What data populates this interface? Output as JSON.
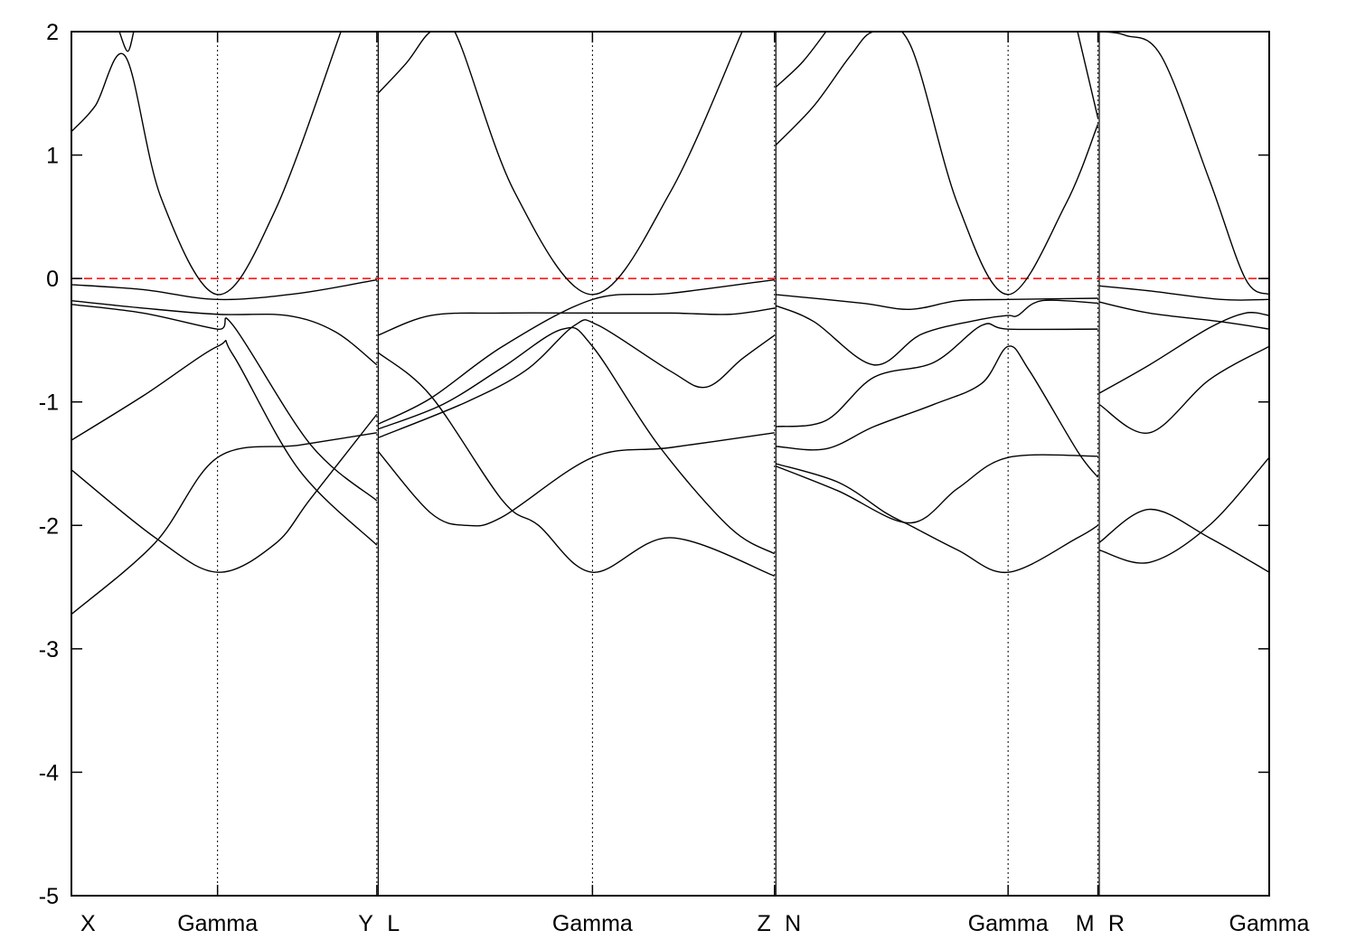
{
  "chart_data": {
    "type": "line",
    "title": "",
    "xlabel": "",
    "ylabel": "",
    "ylim": [
      -5,
      2
    ],
    "yticks": [
      2,
      1,
      0,
      -1,
      -2,
      -3,
      -4,
      -5
    ],
    "x_range": [
      0,
      1
    ],
    "segment_boundaries": [
      0.122,
      0.255,
      0.435,
      0.587,
      0.782,
      0.857
    ],
    "x_tick_labels": [
      {
        "label": "X",
        "x": 0.0
      },
      {
        "label": "Gamma",
        "x": 0.122
      },
      {
        "label": "Y",
        "x": 0.255
      },
      {
        "label": "L",
        "x": 0.256
      },
      {
        "label": "Gamma",
        "x": 0.435
      },
      {
        "label": "Z",
        "x": 0.587
      },
      {
        "label": "N",
        "x": 0.588
      },
      {
        "label": "Gamma",
        "x": 0.782
      },
      {
        "label": "M",
        "x": 0.857
      },
      {
        "label": "R",
        "x": 0.858
      },
      {
        "label": "Gamma",
        "x": 1.0
      }
    ],
    "fermi_level": {
      "y": 0,
      "color": "#ff0000",
      "style": "dashed"
    },
    "grid": false,
    "line_color": "#000000",
    "series": [
      {
        "values": [
          [
            0.0,
            -0.05
          ],
          [
            0.06,
            -0.09
          ],
          [
            0.122,
            -0.17
          ],
          [
            0.19,
            -0.12
          ],
          [
            0.255,
            -0.01
          ]
        ]
      },
      {
        "values": [
          [
            0.0,
            -0.18
          ],
          [
            0.06,
            -0.24
          ],
          [
            0.122,
            -0.29
          ],
          [
            0.18,
            -0.3
          ],
          [
            0.22,
            -0.43
          ],
          [
            0.255,
            -0.7
          ]
        ]
      },
      {
        "values": [
          [
            0.0,
            -0.21
          ],
          [
            0.06,
            -0.28
          ],
          [
            0.122,
            -0.41
          ],
          [
            0.135,
            -0.38
          ],
          [
            0.2,
            -1.35
          ],
          [
            0.255,
            -1.8
          ]
        ]
      },
      {
        "values": [
          [
            0.0,
            -1.31
          ],
          [
            0.06,
            -0.95
          ],
          [
            0.122,
            -0.55
          ],
          [
            0.135,
            -0.62
          ],
          [
            0.19,
            -1.55
          ],
          [
            0.255,
            -2.16
          ]
        ]
      },
      {
        "values": [
          [
            0.0,
            -1.55
          ],
          [
            0.07,
            -2.1
          ],
          [
            0.122,
            -2.38
          ],
          [
            0.17,
            -2.15
          ],
          [
            0.2,
            -1.78
          ],
          [
            0.255,
            -1.1
          ]
        ]
      },
      {
        "values": [
          [
            0.0,
            -2.72
          ],
          [
            0.07,
            -2.14
          ],
          [
            0.122,
            -1.45
          ],
          [
            0.19,
            -1.35
          ],
          [
            0.255,
            -1.25
          ]
        ]
      },
      {
        "values": [
          [
            0.0,
            1.19
          ],
          [
            0.02,
            1.4
          ],
          [
            0.045,
            1.8
          ],
          [
            0.075,
            0.65
          ],
          [
            0.122,
            -0.13
          ],
          [
            0.17,
            0.55
          ],
          [
            0.225,
            2.0
          ]
        ]
      },
      {
        "values": [
          [
            0.04,
            2.0
          ],
          [
            0.047,
            1.84
          ],
          [
            0.052,
            2.0
          ]
        ]
      },
      {
        "values": [
          [
            0.256,
            -0.46
          ],
          [
            0.3,
            -0.3
          ],
          [
            0.36,
            -0.28
          ],
          [
            0.435,
            -0.28
          ],
          [
            0.5,
            -0.28
          ],
          [
            0.55,
            -0.29
          ],
          [
            0.587,
            -0.24
          ]
        ]
      },
      {
        "values": [
          [
            0.256,
            -0.6
          ],
          [
            0.3,
            -0.95
          ],
          [
            0.36,
            -1.8
          ],
          [
            0.39,
            -2.0
          ],
          [
            0.435,
            -2.38
          ],
          [
            0.5,
            -2.1
          ],
          [
            0.587,
            -2.41
          ]
        ]
      },
      {
        "values": [
          [
            0.256,
            -1.18
          ],
          [
            0.3,
            -0.97
          ],
          [
            0.36,
            -0.55
          ],
          [
            0.435,
            -0.17
          ],
          [
            0.5,
            -0.12
          ],
          [
            0.587,
            -0.01
          ]
        ]
      },
      {
        "values": [
          [
            0.256,
            -1.22
          ],
          [
            0.31,
            -1.02
          ],
          [
            0.36,
            -0.72
          ],
          [
            0.41,
            -0.41
          ],
          [
            0.435,
            -0.55
          ],
          [
            0.49,
            -1.35
          ],
          [
            0.55,
            -2.02
          ],
          [
            0.587,
            -2.23
          ]
        ]
      },
      {
        "values": [
          [
            0.256,
            -1.29
          ],
          [
            0.33,
            -1.0
          ],
          [
            0.38,
            -0.74
          ],
          [
            0.42,
            -0.38
          ],
          [
            0.44,
            -0.38
          ],
          [
            0.5,
            -0.75
          ],
          [
            0.53,
            -0.88
          ],
          [
            0.56,
            -0.65
          ],
          [
            0.587,
            -0.46
          ]
        ]
      },
      {
        "values": [
          [
            0.256,
            -1.4
          ],
          [
            0.3,
            -1.9
          ],
          [
            0.33,
            -2.0
          ],
          [
            0.36,
            -1.93
          ],
          [
            0.435,
            -1.45
          ],
          [
            0.5,
            -1.37
          ],
          [
            0.587,
            -1.25
          ]
        ]
      },
      {
        "values": [
          [
            0.256,
            1.5
          ],
          [
            0.28,
            1.75
          ],
          [
            0.3,
            2.0
          ],
          [
            0.32,
            2.0
          ],
          [
            0.37,
            0.7
          ],
          [
            0.435,
            -0.13
          ],
          [
            0.5,
            0.7
          ],
          [
            0.56,
            2.0
          ]
        ]
      },
      {
        "values": [
          [
            0.588,
            -0.13
          ],
          [
            0.66,
            -0.2
          ],
          [
            0.7,
            -0.25
          ],
          [
            0.74,
            -0.18
          ],
          [
            0.782,
            -0.17
          ],
          [
            0.857,
            -0.16
          ]
        ]
      },
      {
        "values": [
          [
            0.588,
            -0.22
          ],
          [
            0.62,
            -0.35
          ],
          [
            0.67,
            -0.7
          ],
          [
            0.71,
            -0.45
          ],
          [
            0.76,
            -0.33
          ],
          [
            0.782,
            -0.3
          ],
          [
            0.79,
            -0.3
          ],
          [
            0.81,
            -0.18
          ],
          [
            0.857,
            -0.2
          ]
        ]
      },
      {
        "values": [
          [
            0.588,
            -1.2
          ],
          [
            0.63,
            -1.15
          ],
          [
            0.67,
            -0.8
          ],
          [
            0.72,
            -0.68
          ],
          [
            0.76,
            -0.38
          ],
          [
            0.782,
            -0.41
          ],
          [
            0.857,
            -0.41
          ]
        ]
      },
      {
        "values": [
          [
            0.588,
            -1.36
          ],
          [
            0.63,
            -1.38
          ],
          [
            0.67,
            -1.2
          ],
          [
            0.72,
            -1.02
          ],
          [
            0.76,
            -0.85
          ],
          [
            0.782,
            -0.55
          ],
          [
            0.8,
            -0.75
          ],
          [
            0.84,
            -1.4
          ],
          [
            0.857,
            -1.61
          ]
        ]
      },
      {
        "values": [
          [
            0.588,
            -1.5
          ],
          [
            0.64,
            -1.65
          ],
          [
            0.68,
            -1.9
          ],
          [
            0.7,
            -2.0
          ],
          [
            0.74,
            -2.2
          ],
          [
            0.782,
            -2.38
          ],
          [
            0.84,
            -2.1
          ],
          [
            0.857,
            -2.0
          ]
        ]
      },
      {
        "values": [
          [
            0.588,
            -1.52
          ],
          [
            0.64,
            -1.72
          ],
          [
            0.7,
            -1.98
          ],
          [
            0.74,
            -1.7
          ],
          [
            0.782,
            -1.45
          ],
          [
            0.857,
            -1.44
          ]
        ]
      },
      {
        "values": [
          [
            0.588,
            1.08
          ],
          [
            0.62,
            1.4
          ],
          [
            0.65,
            1.8
          ],
          [
            0.67,
            2.0
          ],
          [
            0.7,
            1.9
          ],
          [
            0.74,
            0.6
          ],
          [
            0.782,
            -0.13
          ],
          [
            0.83,
            0.6
          ],
          [
            0.857,
            1.25
          ]
        ]
      },
      {
        "values": [
          [
            0.588,
            1.55
          ],
          [
            0.61,
            1.75
          ],
          [
            0.63,
            2.0
          ]
        ]
      },
      {
        "values": [
          [
            0.84,
            2.0
          ],
          [
            0.857,
            1.3
          ]
        ]
      },
      {
        "values": [
          [
            0.858,
            -0.06
          ],
          [
            0.9,
            -0.1
          ],
          [
            0.96,
            -0.17
          ],
          [
            1.0,
            -0.17
          ]
        ]
      },
      {
        "values": [
          [
            0.858,
            -0.19
          ],
          [
            0.9,
            -0.28
          ],
          [
            0.96,
            -0.35
          ],
          [
            1.0,
            -0.41
          ]
        ]
      },
      {
        "values": [
          [
            0.858,
            -0.93
          ],
          [
            0.9,
            -0.7
          ],
          [
            0.95,
            -0.4
          ],
          [
            0.98,
            -0.28
          ],
          [
            1.0,
            -0.3
          ]
        ]
      },
      {
        "values": [
          [
            0.858,
            -1.02
          ],
          [
            0.9,
            -1.25
          ],
          [
            0.95,
            -0.82
          ],
          [
            1.0,
            -0.55
          ]
        ]
      },
      {
        "values": [
          [
            0.858,
            -2.14
          ],
          [
            0.9,
            -1.87
          ],
          [
            0.95,
            -2.1
          ],
          [
            1.0,
            -2.38
          ]
        ]
      },
      {
        "values": [
          [
            0.858,
            -2.2
          ],
          [
            0.9,
            -2.3
          ],
          [
            0.95,
            -2.0
          ],
          [
            1.0,
            -1.45
          ]
        ]
      },
      {
        "values": [
          [
            0.858,
            2.0
          ],
          [
            0.88,
            1.97
          ],
          [
            0.91,
            1.8
          ],
          [
            0.95,
            0.8
          ],
          [
            0.98,
            0.0
          ],
          [
            1.0,
            -0.13
          ]
        ]
      }
    ]
  }
}
